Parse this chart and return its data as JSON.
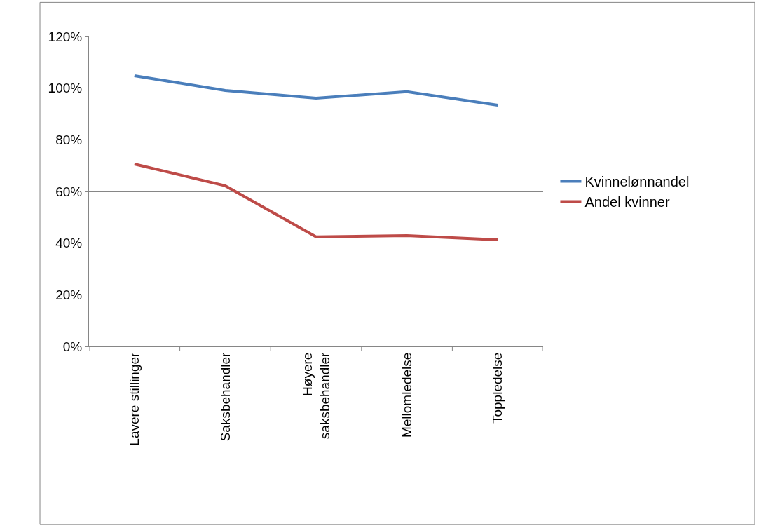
{
  "chart_data": {
    "type": "line",
    "categories": [
      "Lavere stillinger",
      "Saksbehandler",
      "Høyere saksbehandler",
      "Mellomledelse",
      "Toppledelse"
    ],
    "series": [
      {
        "name": "Kvinnelønnandel",
        "color": "#4a7ebb",
        "values": [
          104.8,
          99.1,
          96.1,
          98.6,
          93.4
        ]
      },
      {
        "name": "Andel kvinner",
        "color": "#be4b48",
        "values": [
          70.6,
          62.2,
          42.4,
          42.9,
          41.3
        ]
      }
    ],
    "ylim": [
      0,
      120
    ],
    "yticks": [
      {
        "value": 0,
        "label": "0%"
      },
      {
        "value": 20,
        "label": "20%"
      },
      {
        "value": 40,
        "label": "40%"
      },
      {
        "value": 60,
        "label": "60%"
      },
      {
        "value": 80,
        "label": "80%"
      },
      {
        "value": 100,
        "label": "100%"
      },
      {
        "value": 120,
        "label": "120%"
      }
    ],
    "grid": "y",
    "legend": "right",
    "marker": "none",
    "line_style": "solid"
  }
}
